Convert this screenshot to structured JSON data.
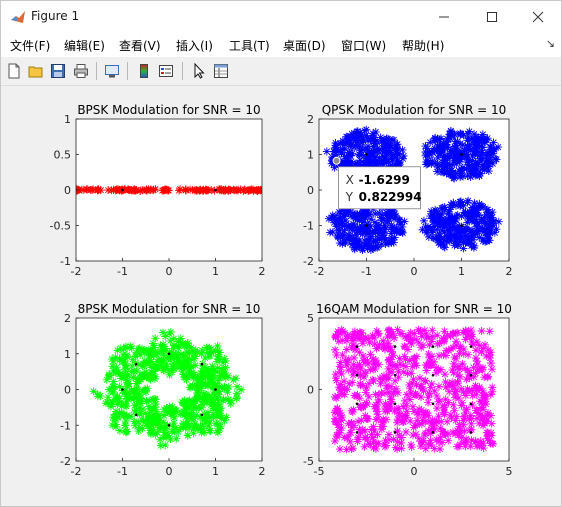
{
  "window": {
    "title": "Figure 1"
  },
  "menu": [
    "文件(F)",
    "编辑(E)",
    "查看(V)",
    "插入(I)",
    "工具(T)",
    "桌面(D)",
    "窗口(W)",
    "帮助(H)"
  ],
  "menu_more_icon": "arrow-icon",
  "toolbar": [
    "new-figure-icon",
    "open-file-icon",
    "save-icon",
    "print-icon",
    "link-icon",
    "colorbar-icon",
    "legend-icon",
    "pointer-icon",
    "property-inspector-icon"
  ],
  "chart_data": [
    {
      "type": "scatter",
      "title": "BPSK Modulation for SNR = 10",
      "xlim": [
        -2,
        2
      ],
      "ylim": [
        -1,
        1
      ],
      "xticks": [
        "-2",
        "-1",
        "0",
        "1",
        "2"
      ],
      "yticks": [
        "-1",
        "-0.5",
        "0",
        "0.5",
        "1"
      ],
      "series": [
        {
          "marker": "*",
          "color": "#ff0000",
          "x_range": [
            -2,
            2
          ],
          "y": 0,
          "spread": 0.05
        },
        {
          "marker": ".",
          "color": "#000000",
          "points": [
            [
              -1,
              0
            ],
            [
              1,
              0
            ]
          ]
        }
      ]
    },
    {
      "type": "scatter",
      "title": "QPSK Modulation for SNR = 10",
      "xlim": [
        -2,
        2
      ],
      "ylim": [
        -2,
        2
      ],
      "xticks": [
        "-2",
        "-1",
        "0",
        "1",
        "2"
      ],
      "yticks": [
        "-2",
        "-1",
        "0",
        "1",
        "2"
      ],
      "series": [
        {
          "marker": "*",
          "color": "#0000ff",
          "clusters": [
            [
              -1,
              1
            ],
            [
              1,
              1
            ],
            [
              -1,
              -1
            ],
            [
              1,
              -1
            ]
          ],
          "radius": 0.85
        },
        {
          "marker": ".",
          "color": "#000000",
          "points": [
            [
              -1,
              1
            ],
            [
              1,
              1
            ],
            [
              -1,
              -1
            ],
            [
              1,
              -1
            ]
          ]
        }
      ],
      "datatip": {
        "x_label": "X",
        "x_value": "-1.6299",
        "y_label": "Y",
        "y_value": "0.822994",
        "point": [
          -1.6299,
          0.822994
        ]
      }
    },
    {
      "type": "scatter",
      "title": "8PSK Modulation for SNR = 10",
      "xlim": [
        -2,
        2
      ],
      "ylim": [
        -2,
        2
      ],
      "xticks": [
        "-2",
        "-1",
        "0",
        "1",
        "2"
      ],
      "yticks": [
        "-2",
        "-1",
        "0",
        "1",
        "2"
      ],
      "series": [
        {
          "marker": "*",
          "color": "#00ff00",
          "ring_radius": 1,
          "ring_width": 0.55
        },
        {
          "marker": ".",
          "color": "#000000",
          "points": [
            [
              1,
              0
            ],
            [
              0.707,
              0.707
            ],
            [
              0,
              1
            ],
            [
              -0.707,
              0.707
            ],
            [
              -1,
              0
            ],
            [
              -0.707,
              -0.707
            ],
            [
              0,
              -1
            ],
            [
              0.707,
              -0.707
            ]
          ]
        }
      ]
    },
    {
      "type": "scatter",
      "title": "16QAM Modulation for SNR = 10",
      "xlim": [
        -5,
        5
      ],
      "ylim": [
        -5,
        5
      ],
      "xticks": [
        "-5",
        "0",
        "5"
      ],
      "yticks": [
        "-5",
        "0",
        "5"
      ],
      "series": [
        {
          "marker": "*",
          "color": "#ff00ff",
          "x_range": [
            -4.2,
            4.2
          ],
          "y_range": [
            -4.2,
            4.2
          ]
        },
        {
          "marker": ".",
          "color": "#000000",
          "points": [
            [
              -3,
              -3
            ],
            [
              -1,
              -3
            ],
            [
              1,
              -3
            ],
            [
              3,
              -3
            ],
            [
              -3,
              -1
            ],
            [
              -1,
              -1
            ],
            [
              1,
              -1
            ],
            [
              3,
              -1
            ],
            [
              -3,
              1
            ],
            [
              -1,
              1
            ],
            [
              1,
              1
            ],
            [
              3,
              1
            ],
            [
              -3,
              3
            ],
            [
              -1,
              3
            ],
            [
              1,
              3
            ],
            [
              3,
              3
            ]
          ]
        }
      ]
    }
  ]
}
